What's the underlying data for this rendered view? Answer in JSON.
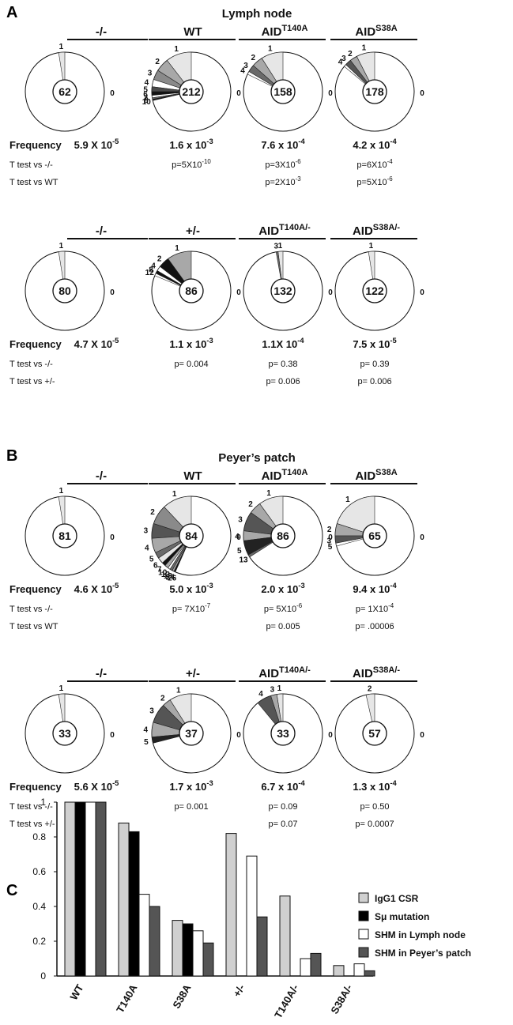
{
  "panel_letters": {
    "A": "A",
    "B": "B",
    "C": "C"
  },
  "sections": [
    {
      "title": "Lymph node",
      "blocks": [
        {
          "row_label_frequency": "Frequency",
          "row_label_t1": "T test vs -/-",
          "row_label_t2": "T test vs WT",
          "groups": [
            {
              "title": "-/-",
              "title_sup": "",
              "center": "62",
              "slices": [
                {
                  "label": "1",
                  "fraction": 0.025,
                  "color": "#e6e6e6"
                }
              ],
              "zero_label": "0",
              "freq_base": "5.9 X 10",
              "freq_exp": "-5",
              "t1": "",
              "t2": ""
            },
            {
              "title": "WT",
              "title_sup": "",
              "center": "212",
              "slices": [
                {
                  "label": "1",
                  "fraction": 0.105,
                  "color": "#e6e6e6"
                },
                {
                  "label": "2",
                  "fraction": 0.055,
                  "color": "#a8a8a8"
                },
                {
                  "label": "3",
                  "fraction": 0.04,
                  "color": "#8a8a8a"
                },
                {
                  "label": "4",
                  "fraction": 0.03,
                  "color": "#ffffff"
                },
                {
                  "label": "5",
                  "fraction": 0.02,
                  "color": "#4a4a4a"
                },
                {
                  "label": "6",
                  "fraction": 0.015,
                  "color": "#111111"
                },
                {
                  "label": "7",
                  "fraction": 0.01,
                  "color": "#ffffff"
                },
                {
                  "label": "8",
                  "fraction": 0.006,
                  "color": "#6a6a6a"
                },
                {
                  "label": "10",
                  "fraction": 0.005,
                  "color": "#111111"
                }
              ],
              "zero_label": "0",
              "freq_base": "1.6 x 10",
              "freq_exp": "-3",
              "t1_base": "p=5X10",
              "t1_exp": "-10",
              "t2": ""
            },
            {
              "title": "AID",
              "title_sup": "T140A",
              "center": "158",
              "slices": [
                {
                  "label": "1",
                  "fraction": 0.09,
                  "color": "#e6e6e6"
                },
                {
                  "label": "2",
                  "fraction": 0.045,
                  "color": "#a8a8a8"
                },
                {
                  "label": "3",
                  "fraction": 0.03,
                  "color": "#6a6a6a"
                },
                {
                  "label": "4",
                  "fraction": 0.012,
                  "color": "#ffffff"
                }
              ],
              "zero_label": "0",
              "freq_base": "7.6 x 10",
              "freq_exp": "-4",
              "t1_base": "p=3X10",
              "t1_exp": "-6",
              "t2_base": "p=2X10",
              "t2_exp": "-3"
            },
            {
              "title": "AID",
              "title_sup": "S38A",
              "center": "178",
              "slices": [
                {
                  "label": "1",
                  "fraction": 0.075,
                  "color": "#e6e6e6"
                },
                {
                  "label": "2",
                  "fraction": 0.03,
                  "color": "#a8a8a8"
                },
                {
                  "label": "3",
                  "fraction": 0.025,
                  "color": "#555555"
                },
                {
                  "label": "4",
                  "fraction": 0.01,
                  "color": "#ffffff"
                }
              ],
              "zero_label": "0",
              "freq_base": "4.2 x 10",
              "freq_exp": "-4",
              "t1_base": "p=6X10",
              "t1_exp": "-4",
              "t2_base": "p=5X10",
              "t2_exp": "-6"
            }
          ]
        },
        {
          "row_label_frequency": "Frequency",
          "row_label_t1": "T test vs -/-",
          "row_label_t2": "T test vs +/-",
          "groups": [
            {
              "title": "-/-",
              "title_sup": "",
              "center": "80",
              "slices": [
                {
                  "label": "1",
                  "fraction": 0.025,
                  "color": "#e6e6e6"
                }
              ],
              "zero_label": "0",
              "freq_base": "4.7 X 10",
              "freq_exp": "-5"
            },
            {
              "title": "+/-",
              "title_sup": "",
              "center": "86",
              "slices": [
                {
                  "label": "1",
                  "fraction": 0.1,
                  "color": "#a8a8a8"
                },
                {
                  "label": "2",
                  "fraction": 0.045,
                  "color": "#111111"
                },
                {
                  "label": "4",
                  "fraction": 0.02,
                  "color": "#ffffff"
                },
                {
                  "label": "8",
                  "fraction": 0.012,
                  "color": "#111111"
                },
                {
                  "label": "12",
                  "fraction": 0.01,
                  "color": "#ffffff"
                }
              ],
              "zero_label": "0",
              "freq_base": "1.1 x 10",
              "freq_exp": "-3",
              "t1_plain": "p= 0.004"
            },
            {
              "title": "AID",
              "title_sup": "T140A/-",
              "center": "132",
              "slices": [
                {
                  "label": "1",
                  "fraction": 0.02,
                  "color": "#e6e6e6"
                },
                {
                  "label": "3",
                  "fraction": 0.008,
                  "color": "#6a6a6a"
                }
              ],
              "zero_label": "0",
              "freq_base": "1.1X 10",
              "freq_exp": "-4",
              "t1_plain": "p= 0.38",
              "t2_plain": "p= 0.006"
            },
            {
              "title": "AID",
              "title_sup": "S38A/-",
              "center": "122",
              "slices": [
                {
                  "label": "1",
                  "fraction": 0.025,
                  "color": "#e6e6e6"
                }
              ],
              "zero_label": "0",
              "freq_base": "7.5 x 10",
              "freq_exp": "-5",
              "t1_plain": "p= 0.39",
              "t2_plain": "p= 0.006"
            }
          ]
        }
      ]
    },
    {
      "title": "Peyer’s patch",
      "blocks": [
        {
          "row_label_frequency": "Frequency",
          "row_label_t1": "T test vs -/-",
          "row_label_t2": "T test vs WT",
          "groups": [
            {
              "title": "-/-",
              "title_sup": "",
              "center": "81",
              "slices": [
                {
                  "label": "1",
                  "fraction": 0.025,
                  "color": "#e6e6e6"
                }
              ],
              "zero_label": "0",
              "freq_base": "4.6 X 10",
              "freq_exp": "-5"
            },
            {
              "title": "WT",
              "title_sup": "",
              "center": "84",
              "slices": [
                {
                  "label": "1",
                  "fraction": 0.12,
                  "color": "#e6e6e6"
                },
                {
                  "label": "2",
                  "fraction": 0.08,
                  "color": "#8a8a8a"
                },
                {
                  "label": "3",
                  "fraction": 0.06,
                  "color": "#555555"
                },
                {
                  "label": "4",
                  "fraction": 0.06,
                  "color": "#a8a8a8"
                },
                {
                  "label": "5",
                  "fraction": 0.025,
                  "color": "#6a6a6a"
                },
                {
                  "label": "6",
                  "fraction": 0.025,
                  "color": "#e6e6e6"
                },
                {
                  "label": "7",
                  "fraction": 0.015,
                  "color": "#111111"
                },
                {
                  "label": "10",
                  "fraction": 0.015,
                  "color": "#a8a8a8"
                },
                {
                  "label": "12",
                  "fraction": 0.01,
                  "color": "#ffffff"
                },
                {
                  "label": "13",
                  "fraction": 0.01,
                  "color": "#6a6a6a"
                },
                {
                  "label": "24",
                  "fraction": 0.008,
                  "color": "#a8a8a8"
                },
                {
                  "label": "26",
                  "fraction": 0.006,
                  "color": "#111111"
                }
              ],
              "zero_label": "0",
              "freq_base": "5.0 x 10",
              "freq_exp": "-3",
              "t1_base": "p= 7X10",
              "t1_exp": "-7"
            },
            {
              "title": "AID",
              "title_sup": "T140A",
              "center": "86",
              "slices": [
                {
                  "label": "1",
                  "fraction": 0.1,
                  "color": "#e6e6e6"
                },
                {
                  "label": "2",
                  "fraction": 0.05,
                  "color": "#a8a8a8"
                },
                {
                  "label": "3",
                  "fraction": 0.08,
                  "color": "#555555"
                },
                {
                  "label": "4",
                  "fraction": 0.04,
                  "color": "#a8a8a8"
                },
                {
                  "label": "5",
                  "fraction": 0.06,
                  "color": "#222222"
                },
                {
                  "label": "13",
                  "fraction": 0.01,
                  "color": "#6a6a6a"
                }
              ],
              "zero_label": "0",
              "freq_base": "2.0 x 10",
              "freq_exp": "-3",
              "t1_base": "p= 5X10",
              "t1_exp": "-6",
              "t2_plain": "p= 0.005"
            },
            {
              "title": "AID",
              "title_sup": "S38A",
              "center": "65",
              "slices": [
                {
                  "label": "1",
                  "fraction": 0.2,
                  "color": "#e6e6e6"
                },
                {
                  "label": "2",
                  "fraction": 0.05,
                  "color": "#a8a8a8"
                },
                {
                  "label": "3",
                  "fraction": 0.03,
                  "color": "#555555"
                },
                {
                  "label": "5",
                  "fraction": 0.012,
                  "color": "#ffffff"
                }
              ],
              "zero_label": "0",
              "freq_base": "9.4 x 10",
              "freq_exp": "-4",
              "t1_base": "p= 1X10",
              "t1_exp": "-4",
              "t2_plain": "p= .00006"
            }
          ]
        },
        {
          "row_label_frequency": "Frequency",
          "row_label_t1": "T test vs -/-",
          "row_label_t2": "T test vs +/-",
          "groups": [
            {
              "title": "-/-",
              "title_sup": "",
              "center": "33",
              "slices": [
                {
                  "label": "1",
                  "fraction": 0.025,
                  "color": "#e6e6e6"
                }
              ],
              "zero_label": "0",
              "freq_base": "5.6 X 10",
              "freq_exp": "-5"
            },
            {
              "title": "+/-",
              "title_sup": "",
              "center": "37",
              "slices": [
                {
                  "label": "1",
                  "fraction": 0.09,
                  "color": "#e6e6e6"
                },
                {
                  "label": "2",
                  "fraction": 0.035,
                  "color": "#a8a8a8"
                },
                {
                  "label": "3",
                  "fraction": 0.08,
                  "color": "#555555"
                },
                {
                  "label": "4",
                  "fraction": 0.06,
                  "color": "#a8a8a8"
                },
                {
                  "label": "5",
                  "fraction": 0.025,
                  "color": "#222222"
                }
              ],
              "zero_label": "0",
              "freq_base": "1.7 x 10",
              "freq_exp": "-3",
              "t1_plain": "p= 0.001"
            },
            {
              "title": "AID",
              "title_sup": "T140A/-",
              "center": "33",
              "slices": [
                {
                  "label": "1",
                  "fraction": 0.025,
                  "color": "#e6e6e6"
                },
                {
                  "label": "3",
                  "fraction": 0.025,
                  "color": "#a8a8a8"
                },
                {
                  "label": "4",
                  "fraction": 0.06,
                  "color": "#555555"
                }
              ],
              "zero_label": "0",
              "freq_base": "6.7 x 10",
              "freq_exp": "-4",
              "t1_plain": "p= 0.09",
              "t2_plain": "p= 0.07"
            },
            {
              "title": "AID",
              "title_sup": "S38A/-",
              "center": "57",
              "slices": [
                {
                  "label": "2",
                  "fraction": 0.035,
                  "color": "#e6e6e6"
                }
              ],
              "zero_label": "0",
              "freq_base": "1.3 x 10",
              "freq_exp": "-4",
              "t1_plain": "p= 0.50",
              "t2_plain": "p= 0.0007"
            }
          ]
        }
      ]
    }
  ],
  "chart_data": {
    "type": "bar",
    "categories": [
      "WT",
      "T140A",
      "S38A",
      "+/-",
      "T140A/-",
      "S38A/-"
    ],
    "ylim": [
      0,
      1
    ],
    "yticks": [
      "0",
      "0.2",
      "0.4",
      "0.6",
      "0.8",
      "1"
    ],
    "series": [
      {
        "name": "IgG1 CSR",
        "color": "#d0d0d0",
        "values": [
          1.0,
          0.88,
          0.32,
          0.82,
          0.46,
          0.06
        ]
      },
      {
        "name": "Sμ mutation",
        "color": "#000000",
        "values": [
          1.0,
          0.83,
          0.3,
          null,
          null,
          null
        ]
      },
      {
        "name": "SHM in Lymph node",
        "color": "#ffffff",
        "values": [
          1.0,
          0.47,
          0.26,
          0.69,
          0.1,
          0.07
        ]
      },
      {
        "name": "SHM in Peyer’s patch",
        "color": "#555555",
        "values": [
          1.0,
          0.4,
          0.19,
          0.34,
          0.13,
          0.03
        ]
      }
    ]
  }
}
